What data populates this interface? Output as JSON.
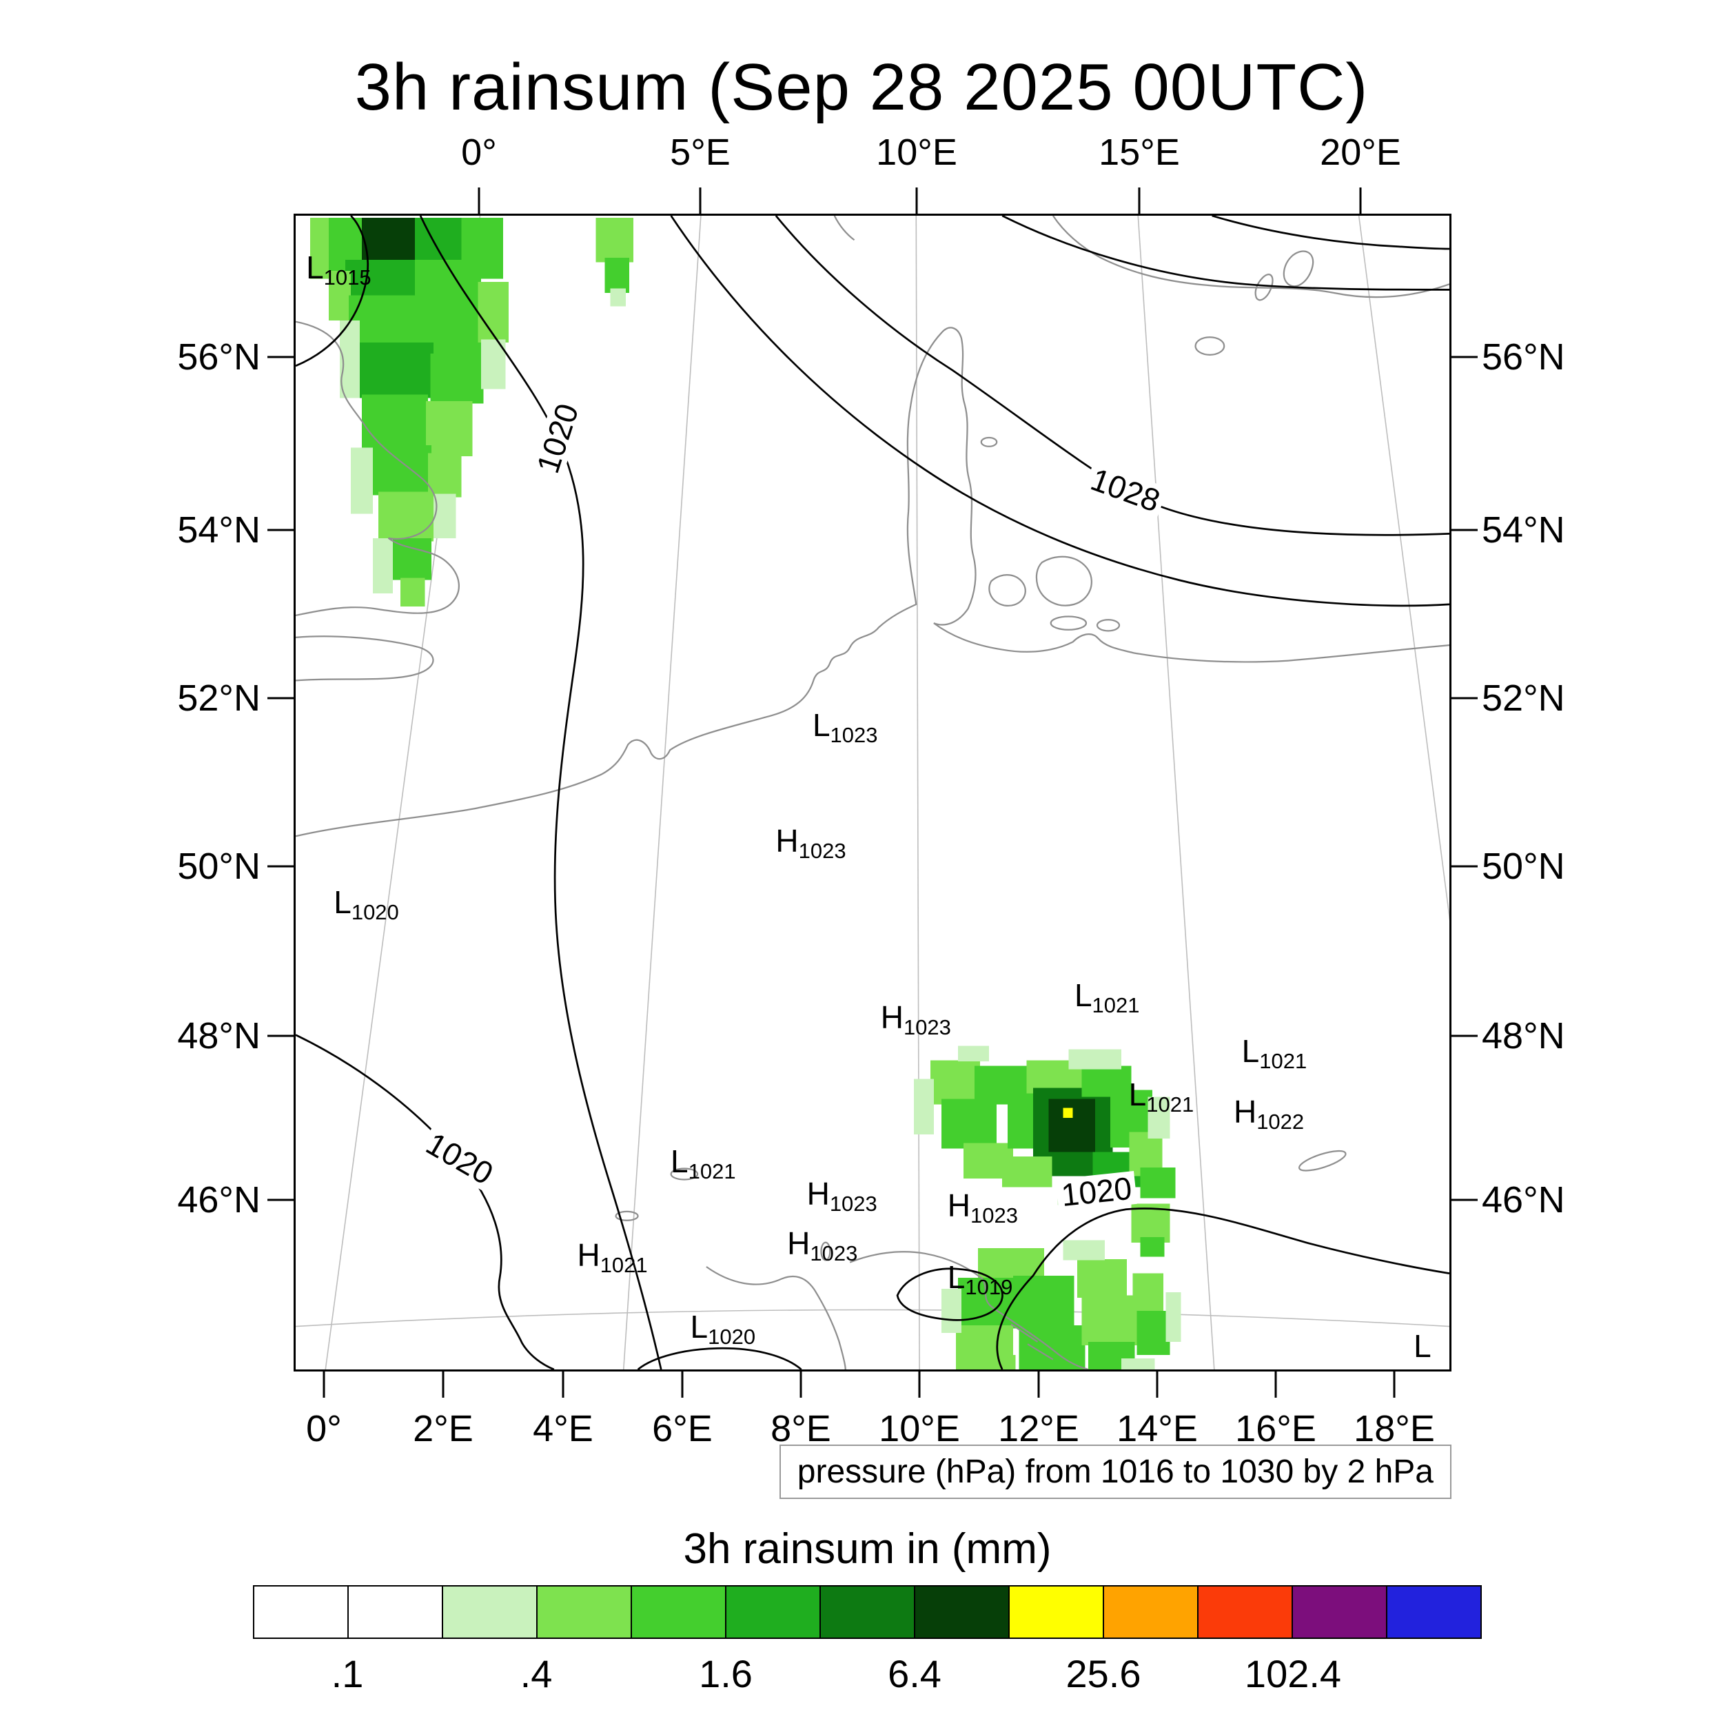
{
  "title": "3h rainsum (Sep 28 2025 00UTC)",
  "axes": {
    "top": [
      "0°",
      "5°E",
      "10°E",
      "15°E",
      "20°E"
    ],
    "bottom": [
      "0°",
      "2°E",
      "4°E",
      "6°E",
      "8°E",
      "10°E",
      "12°E",
      "14°E",
      "16°E",
      "18°E"
    ],
    "left": [
      "56°N",
      "54°N",
      "52°N",
      "50°N",
      "48°N",
      "46°N"
    ],
    "right": [
      "56°N",
      "54°N",
      "52°N",
      "50°N",
      "48°N",
      "46°N"
    ]
  },
  "contour_labels": [
    "1020",
    "1028",
    "1020",
    "1020"
  ],
  "pressure_centers": [
    {
      "letter": "L",
      "value": "1015"
    },
    {
      "letter": "L",
      "value": "1023"
    },
    {
      "letter": "H",
      "value": "1023"
    },
    {
      "letter": "L",
      "value": "1020"
    },
    {
      "letter": "H",
      "value": "1023"
    },
    {
      "letter": "L",
      "value": "1021"
    },
    {
      "letter": "L",
      "value": "1021"
    },
    {
      "letter": "L",
      "value": "1021"
    },
    {
      "letter": "H",
      "value": "1022"
    },
    {
      "letter": "L",
      "value": "1021"
    },
    {
      "letter": "H",
      "value": "1023"
    },
    {
      "letter": "H",
      "value": "1023"
    },
    {
      "letter": "H",
      "value": "1023"
    },
    {
      "letter": "H",
      "value": "1021"
    },
    {
      "letter": "L",
      "value": "1019"
    },
    {
      "letter": "L",
      "value": "1020"
    },
    {
      "letter": "L",
      "value": ""
    }
  ],
  "caption": "pressure (hPa) from 1016 to 1030 by 2 hPa",
  "colorbar": {
    "title": "3h rainsum in (mm)",
    "tick_labels": [
      ".1",
      ".4",
      "1.6",
      "6.4",
      "25.6",
      "102.4"
    ],
    "colors": [
      "#ffffff",
      "#ffffff",
      "#c9f2bd",
      "#7ee24f",
      "#44cf2e",
      "#1fae1f",
      "#0d7a12",
      "#063f08",
      "#ffff00",
      "#ffa300",
      "#fb3b09",
      "#7c0e7c",
      "#2222dd"
    ]
  },
  "rain_palette": {
    "g1": "#c9f2bd",
    "g2": "#7ee24f",
    "g3": "#44cf2e",
    "g4": "#1fae1f",
    "g5": "#0d7a12",
    "g6": "#063f08",
    "gy": "#ffff00"
  }
}
